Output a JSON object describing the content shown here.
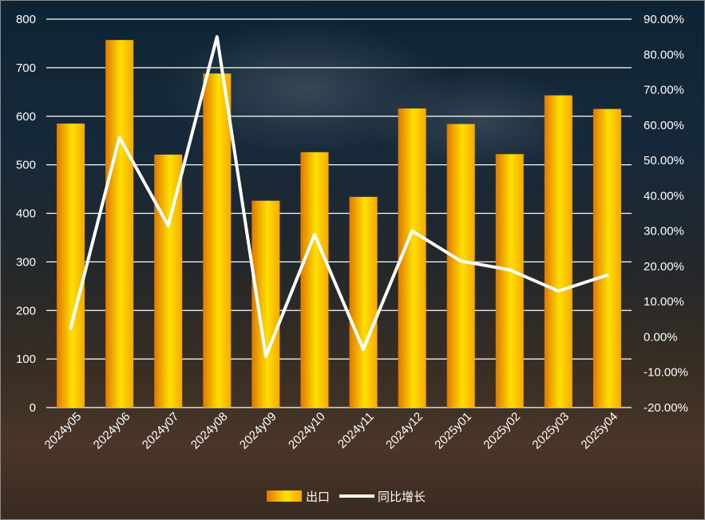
{
  "chart_data": {
    "type": "bar",
    "categories": [
      "2024y05",
      "2024y06",
      "2024y07",
      "2024y08",
      "2024y09",
      "2024y10",
      "2024y11",
      "2024y12",
      "2025y01",
      "2025y02",
      "2025y03",
      "2025y04"
    ],
    "series": [
      {
        "name": "出口",
        "type": "bar",
        "axis": "left",
        "values": [
          585,
          757,
          521,
          688,
          426,
          526,
          434,
          616,
          584,
          522,
          643,
          615
        ]
      },
      {
        "name": "同比增长",
        "type": "line",
        "axis": "right",
        "unit": "%",
        "values": [
          2.5,
          56.5,
          31.5,
          85.0,
          -5.5,
          29.0,
          -3.5,
          30.0,
          21.5,
          19.0,
          13.0,
          17.5
        ]
      }
    ],
    "y_left": {
      "min": 0,
      "max": 800,
      "step": 100,
      "ticks": [
        "0",
        "100",
        "200",
        "300",
        "400",
        "500",
        "600",
        "700",
        "800"
      ]
    },
    "y_right": {
      "min": -20,
      "max": 90,
      "step": 10,
      "ticks": [
        "-20.00%",
        "-10.00%",
        "0.00%",
        "10.00%",
        "20.00%",
        "30.00%",
        "40.00%",
        "50.00%",
        "60.00%",
        "70.00%",
        "80.00%",
        "90.00%"
      ]
    },
    "grid": true,
    "legend_position": "bottom",
    "colors": {
      "bar_edge": "#e88a00",
      "bar_center": "#ffe600",
      "line": "#ffffff",
      "grid": "#ffffff"
    }
  },
  "legend": {
    "bar_label": "出口",
    "line_label": "同比增长"
  }
}
